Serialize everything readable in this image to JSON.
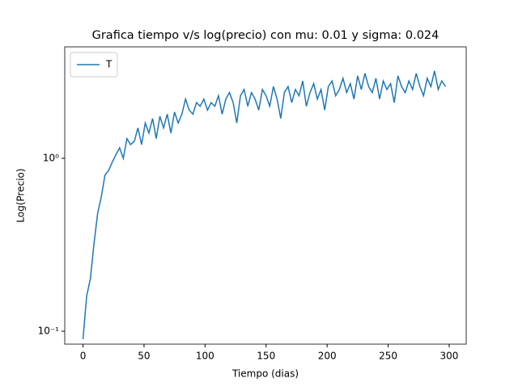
{
  "chart_data": {
    "type": "line",
    "title": "Grafica tiempo v/s log(precio) con mu: 0.01 y sigma: 0.024",
    "x_label": "Tiempo (dias)",
    "y_label": "Log(Precio)",
    "x": [
      0,
      3,
      6,
      9,
      12,
      15,
      18,
      21,
      24,
      27,
      30,
      33,
      36,
      39,
      42,
      45,
      48,
      51,
      54,
      57,
      60,
      63,
      66,
      69,
      72,
      75,
      78,
      81,
      84,
      87,
      90,
      93,
      96,
      99,
      102,
      105,
      108,
      111,
      114,
      117,
      120,
      123,
      126,
      129,
      132,
      135,
      138,
      141,
      144,
      147,
      150,
      153,
      156,
      159,
      162,
      165,
      168,
      171,
      174,
      177,
      180,
      183,
      186,
      189,
      192,
      195,
      198,
      201,
      204,
      207,
      210,
      213,
      216,
      219,
      222,
      225,
      228,
      231,
      234,
      237,
      240,
      243,
      246,
      249,
      252,
      255,
      258,
      261,
      264,
      267,
      270,
      273,
      276,
      279,
      282,
      285,
      288,
      291,
      294,
      297
    ],
    "series": [
      {
        "name": "T",
        "color": "#1f77b4",
        "values": [
          0.09,
          0.16,
          0.2,
          0.32,
          0.48,
          0.6,
          0.8,
          0.85,
          0.95,
          1.05,
          1.15,
          1.0,
          1.3,
          1.2,
          1.25,
          1.5,
          1.2,
          1.6,
          1.4,
          1.7,
          1.3,
          1.75,
          1.5,
          1.8,
          1.4,
          1.85,
          1.6,
          1.8,
          2.2,
          1.9,
          1.8,
          2.1,
          2.0,
          2.2,
          1.9,
          2.1,
          2.0,
          2.3,
          1.8,
          2.2,
          2.4,
          2.1,
          1.6,
          2.3,
          2.5,
          2.0,
          2.4,
          2.2,
          1.9,
          2.5,
          2.3,
          2.0,
          2.6,
          2.2,
          1.7,
          2.4,
          2.6,
          2.1,
          2.5,
          2.3,
          2.8,
          2.0,
          2.4,
          2.7,
          2.2,
          2.5,
          1.9,
          2.6,
          2.8,
          2.3,
          2.5,
          2.9,
          2.4,
          2.7,
          2.2,
          3.0,
          2.5,
          3.1,
          2.6,
          2.4,
          2.9,
          2.2,
          2.8,
          2.5,
          2.7,
          2.1,
          3.0,
          2.6,
          2.4,
          2.8,
          2.5,
          3.1,
          2.6,
          2.3,
          2.9,
          2.6,
          3.2,
          2.5,
          2.8,
          2.6
        ]
      }
    ],
    "xlim": [
      -14.95,
      313.95
    ],
    "xticks": [
      0,
      50,
      100,
      150,
      200,
      250,
      300
    ],
    "ylim": [
      0.0842,
      4.41
    ],
    "y_scale": "log",
    "yticks": [
      {
        "value": 0.1,
        "label": "10⁻¹"
      },
      {
        "value": 1,
        "label": "10⁰"
      }
    ],
    "legend": "upper left"
  }
}
